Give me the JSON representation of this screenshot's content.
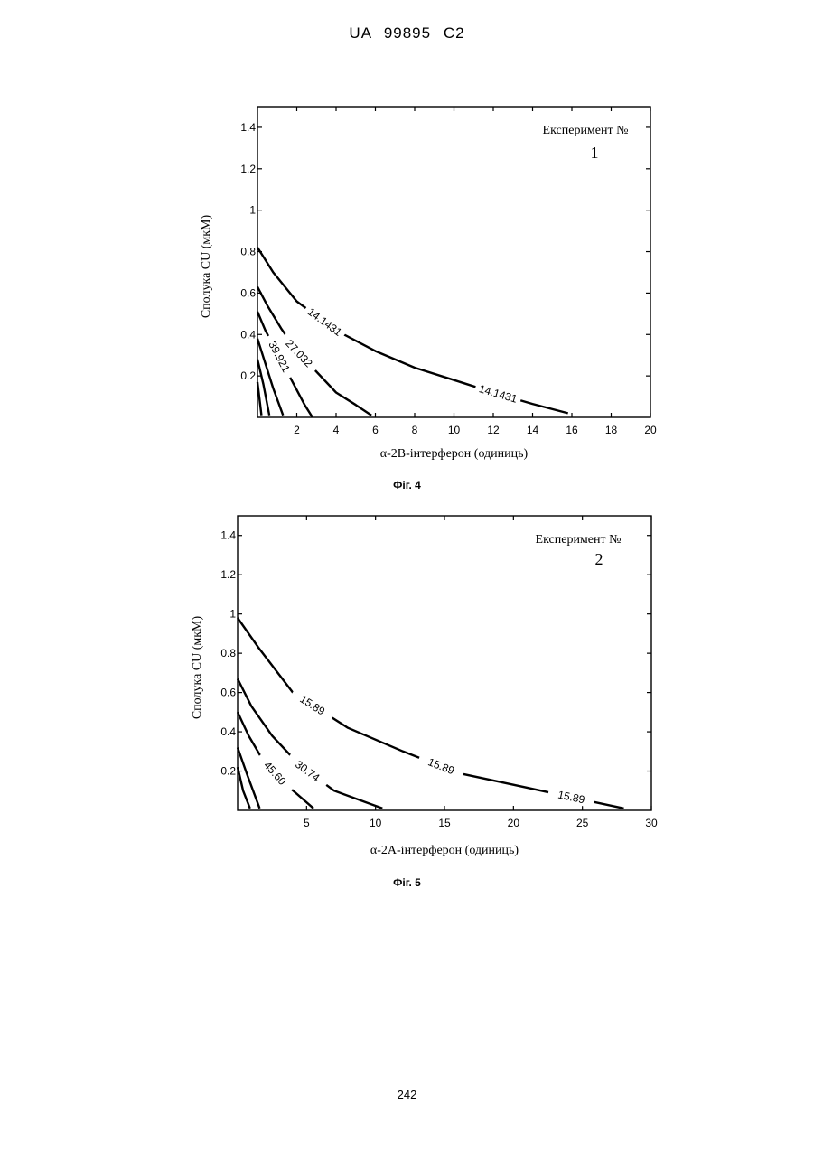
{
  "header": {
    "doc_id": "UA   99895   C2"
  },
  "footer": {
    "page_number": "242"
  },
  "figures": [
    {
      "caption": "Фіг. 4",
      "experiment_label": "Експеримент №",
      "experiment_number": "1"
    },
    {
      "caption": "Фіг. 5",
      "experiment_label": "Експеримент №",
      "experiment_number": "2"
    }
  ],
  "chart_data": [
    {
      "type": "line",
      "subtype": "contour",
      "xlabel": "α-2В-інтерферон (одиниць)",
      "ylabel": "Сполука CU (мкМ)",
      "xlim": [
        0,
        20
      ],
      "ylim": [
        0,
        1.5
      ],
      "xticks": [
        "2",
        "4",
        "6",
        "8",
        "10",
        "12",
        "14",
        "16",
        "18",
        "20"
      ],
      "yticks": [
        "0.2",
        "0.4",
        "0.6",
        "0.8",
        "1",
        "1.2",
        "1.4"
      ],
      "series": [
        {
          "name": "14.1431",
          "labels": [
            "14.1431",
            "14.1431"
          ],
          "points": [
            [
              0,
              0.82
            ],
            [
              0.8,
              0.7
            ],
            [
              2,
              0.56
            ],
            [
              4,
              0.42
            ],
            [
              6,
              0.32
            ],
            [
              8,
              0.24
            ],
            [
              10,
              0.18
            ],
            [
              12,
              0.12
            ],
            [
              14,
              0.065
            ],
            [
              15.8,
              0.02
            ]
          ]
        },
        {
          "name": "27.032",
          "labels": [
            "27.032"
          ],
          "points": [
            [
              0,
              0.63
            ],
            [
              0.5,
              0.54
            ],
            [
              1.2,
              0.43
            ],
            [
              2,
              0.32
            ],
            [
              3,
              0.22
            ],
            [
              4,
              0.12
            ],
            [
              5,
              0.06
            ],
            [
              5.8,
              0.01
            ]
          ]
        },
        {
          "name": "39.921",
          "labels": [
            "39.921"
          ],
          "points": [
            [
              0,
              0.51
            ],
            [
              0.4,
              0.42
            ],
            [
              0.9,
              0.33
            ],
            [
              1.4,
              0.24
            ],
            [
              1.9,
              0.15
            ],
            [
              2.4,
              0.06
            ],
            [
              2.8,
              0.0
            ]
          ]
        },
        {
          "name": "",
          "labels": [],
          "points": [
            [
              0,
              0.38
            ],
            [
              0.4,
              0.26
            ],
            [
              0.8,
              0.14
            ],
            [
              1.3,
              0.01
            ]
          ]
        },
        {
          "name": "",
          "labels": [],
          "points": [
            [
              0,
              0.28
            ],
            [
              0.3,
              0.16
            ],
            [
              0.6,
              0.01
            ]
          ]
        },
        {
          "name": "",
          "labels": [],
          "points": [
            [
              0,
              0.17
            ],
            [
              0.2,
              0.01
            ]
          ]
        }
      ]
    },
    {
      "type": "line",
      "subtype": "contour",
      "xlabel": "α-2А-інтерферон (одиниць)",
      "ylabel": "Сполука CU (мкМ)",
      "xlim": [
        0,
        30
      ],
      "ylim": [
        0,
        1.5
      ],
      "xticks": [
        "5",
        "10",
        "15",
        "20",
        "25",
        "30"
      ],
      "yticks": [
        "0.2",
        "0.4",
        "0.6",
        "0.8",
        "1",
        "1.2",
        "1.4"
      ],
      "series": [
        {
          "name": "15.89",
          "labels": [
            "15.89",
            "15.89",
            "15.89"
          ],
          "points": [
            [
              0,
              0.98
            ],
            [
              1.5,
              0.83
            ],
            [
              4,
              0.6
            ],
            [
              8,
              0.42
            ],
            [
              12,
              0.3
            ],
            [
              16,
              0.19
            ],
            [
              20,
              0.13
            ],
            [
              24,
              0.07
            ],
            [
              28,
              0.01
            ]
          ]
        },
        {
          "name": "30.74",
          "labels": [
            "30.74"
          ],
          "points": [
            [
              0,
              0.67
            ],
            [
              1,
              0.53
            ],
            [
              2.5,
              0.38
            ],
            [
              4.5,
              0.23
            ],
            [
              7,
              0.1
            ],
            [
              10.5,
              0.01
            ]
          ]
        },
        {
          "name": "45.60",
          "labels": [
            "45.60"
          ],
          "points": [
            [
              0,
              0.5
            ],
            [
              0.8,
              0.38
            ],
            [
              1.8,
              0.26
            ],
            [
              3.2,
              0.15
            ],
            [
              5.5,
              0.01
            ]
          ]
        },
        {
          "name": "",
          "labels": [],
          "points": [
            [
              0,
              0.32
            ],
            [
              0.7,
              0.18
            ],
            [
              1.6,
              0.01
            ]
          ]
        },
        {
          "name": "",
          "labels": [],
          "points": [
            [
              0,
              0.22
            ],
            [
              0.4,
              0.1
            ],
            [
              0.9,
              0.01
            ]
          ]
        }
      ]
    }
  ]
}
